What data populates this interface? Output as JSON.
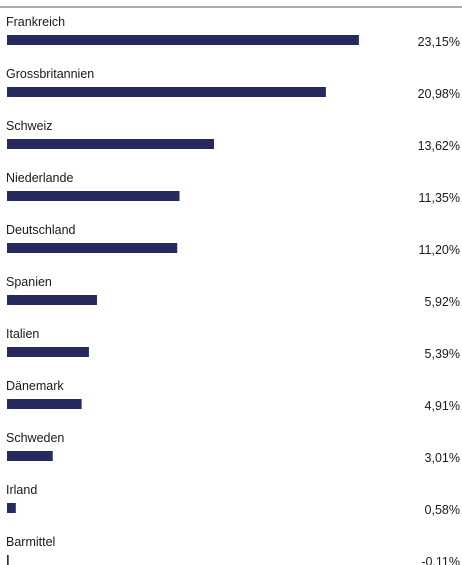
{
  "chart_data": {
    "type": "bar",
    "orientation": "horizontal",
    "categories": [
      "Frankreich",
      "Grossbritannien",
      "Schweiz",
      "Niederlande",
      "Deutschland",
      "Spanien",
      "Italien",
      "Dänemark",
      "Schweden",
      "Irland",
      "Barmittel"
    ],
    "values": [
      23.15,
      20.98,
      13.62,
      11.35,
      11.2,
      5.92,
      5.39,
      4.91,
      3.01,
      0.58,
      -0.11
    ],
    "value_labels": [
      "23,15%",
      "20,98%",
      "13,62%",
      "11,35%",
      "11,20%",
      "5,92%",
      "5,39%",
      "4,91%",
      "3,01%",
      "0,58%",
      "-0,11%"
    ],
    "bar_color": "#272a5e",
    "top_rule": true
  }
}
